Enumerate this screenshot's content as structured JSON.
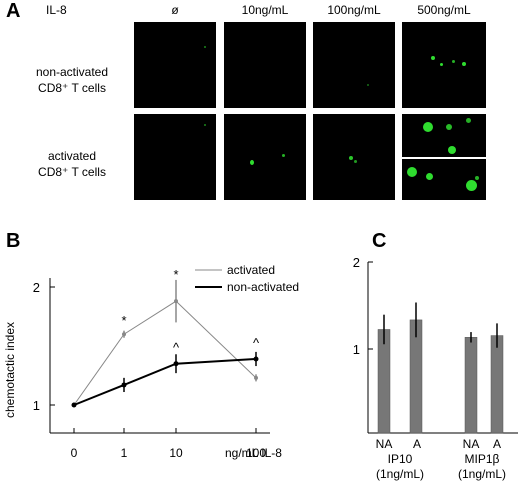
{
  "panelA": {
    "label": "A",
    "corner_label": "IL-8",
    "columns": [
      "ø",
      "10ng/mL",
      "100ng/mL",
      "500ng/mL"
    ],
    "rows": [
      {
        "line1": "non-activated",
        "line2": "CD8⁺ T cells"
      },
      {
        "line1": "activated",
        "line2": "CD8⁺ T cells"
      }
    ],
    "signal_color": "#2fdc2f"
  },
  "panelB": {
    "label": "B",
    "legend": [
      "activated",
      "non-activated"
    ],
    "x_unit": "ng/mL IL-8"
  },
  "panelC": {
    "label": "C",
    "ytick_top": "2",
    "ytick_mid": "1",
    "group1": {
      "bar1": "NA",
      "bar2": "A",
      "name": "IP10",
      "dose": "(1ng/mL)"
    },
    "group2": {
      "bar1": "NA",
      "bar2": "A",
      "name": "MIP1β",
      "dose": "(1ng/mL)"
    }
  },
  "chart_data": [
    {
      "type": "line",
      "panel": "B",
      "ylabel": "chemotactic index",
      "xlabel": "ng/mL IL-8",
      "x": [
        "0",
        "1",
        "10",
        "100"
      ],
      "yticks": [
        "1",
        "2"
      ],
      "ylim": [
        0.85,
        2.3
      ],
      "legend_position": "top-right",
      "series": [
        {
          "name": "activated",
          "color": "#888888",
          "values": [
            1.0,
            1.6,
            1.88,
            1.23
          ],
          "errors": [
            0.0,
            0.03,
            0.18,
            0.03
          ]
        },
        {
          "name": "non-activated",
          "color": "#000000",
          "values": [
            1.0,
            1.17,
            1.35,
            1.39
          ],
          "errors": [
            0.0,
            0.06,
            0.08,
            0.06
          ]
        }
      ],
      "annotations": [
        {
          "text": "*",
          "x": "1",
          "y": 1.72
        },
        {
          "text": "*",
          "x": "10",
          "y": 2.11
        },
        {
          "text": "^",
          "x": "10",
          "y": 1.49
        },
        {
          "text": "^",
          "x": "100",
          "y": 1.53
        }
      ]
    },
    {
      "type": "bar",
      "panel": "C",
      "categories": [
        "NA",
        "A",
        "NA",
        "A"
      ],
      "groups": [
        "IP10 (1ng/mL)",
        "MIP1β (1ng/mL)"
      ],
      "yticks": [
        "1",
        "2"
      ],
      "ylim": [
        0,
        2
      ],
      "bar_color": "#777777",
      "values": [
        1.19,
        1.3,
        1.1,
        1.12
      ],
      "errors": [
        0.17,
        0.2,
        0.06,
        0.14
      ]
    }
  ]
}
